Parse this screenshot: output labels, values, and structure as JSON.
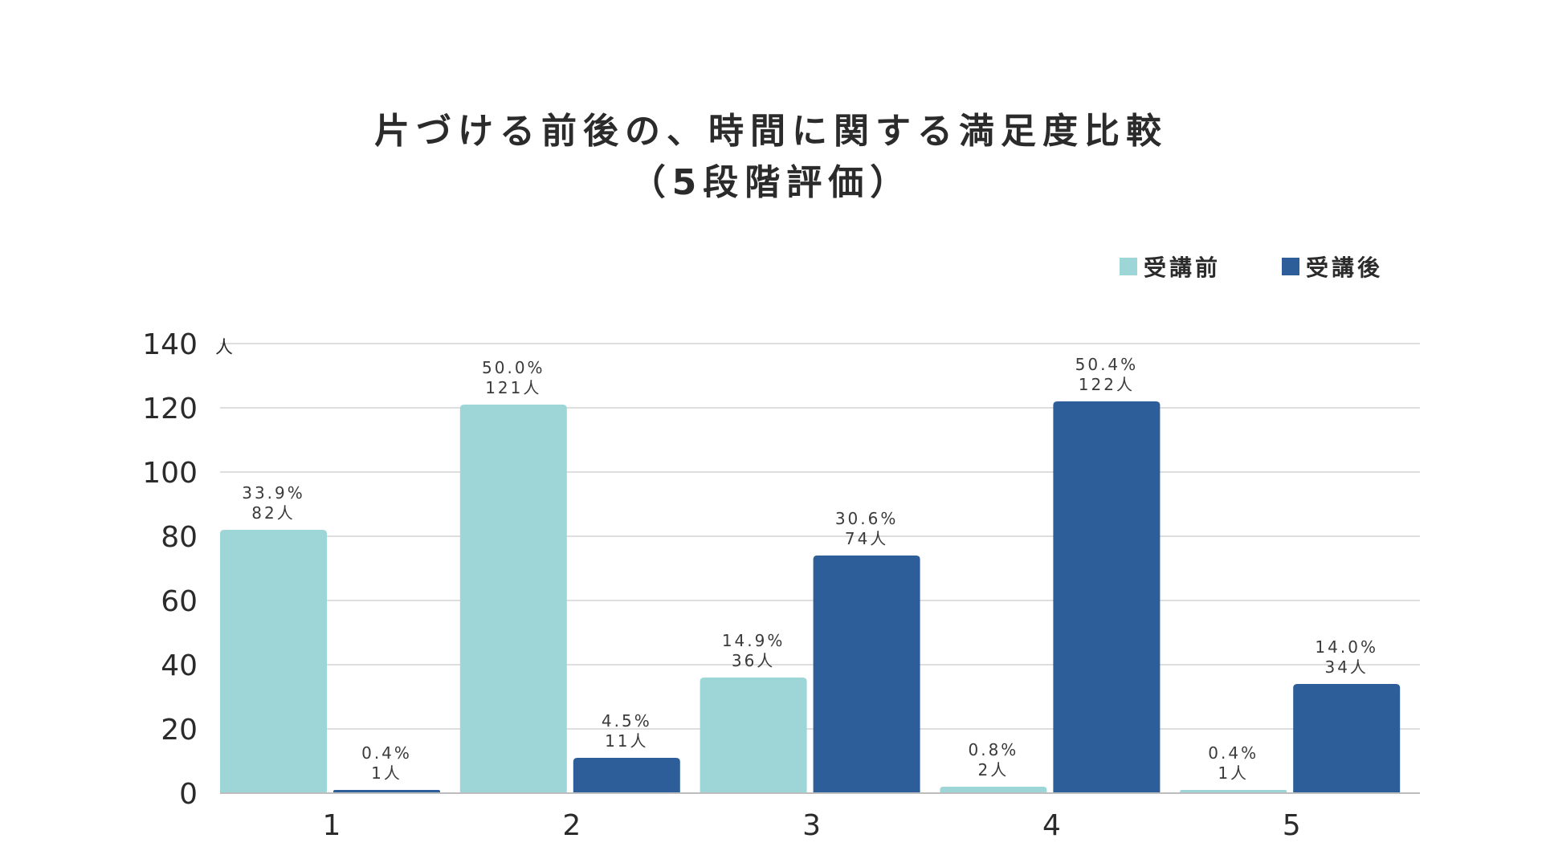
{
  "chart_data": {
    "type": "bar",
    "title_lines": [
      "片づける前後の、時間に関する満足度比較",
      "（5段階評価）"
    ],
    "y_unit": "人",
    "ylim": [
      0,
      140
    ],
    "yticks": [
      0,
      20,
      40,
      60,
      80,
      100,
      120,
      140
    ],
    "grid": true,
    "legend_position": "top-right",
    "categories": [
      "1",
      "2",
      "3",
      "4",
      "5"
    ],
    "series": [
      {
        "name": "受講前",
        "color": "#9ed6d7",
        "values": [
          82,
          121,
          36,
          2,
          1
        ],
        "percent_labels": [
          "33.9%",
          "50.0%",
          "14.9%",
          "0.8%",
          "0.4%"
        ],
        "count_labels": [
          "82人",
          "121人",
          "36人",
          "2人",
          "1人"
        ]
      },
      {
        "name": "受講後",
        "color": "#2e5e99",
        "values": [
          1,
          11,
          74,
          122,
          34
        ],
        "percent_labels": [
          "0.4%",
          "4.5%",
          "30.6%",
          "50.4%",
          "14.0%"
        ],
        "count_labels": [
          "1人",
          "11人",
          "74人",
          "122人",
          "34人"
        ]
      }
    ]
  }
}
